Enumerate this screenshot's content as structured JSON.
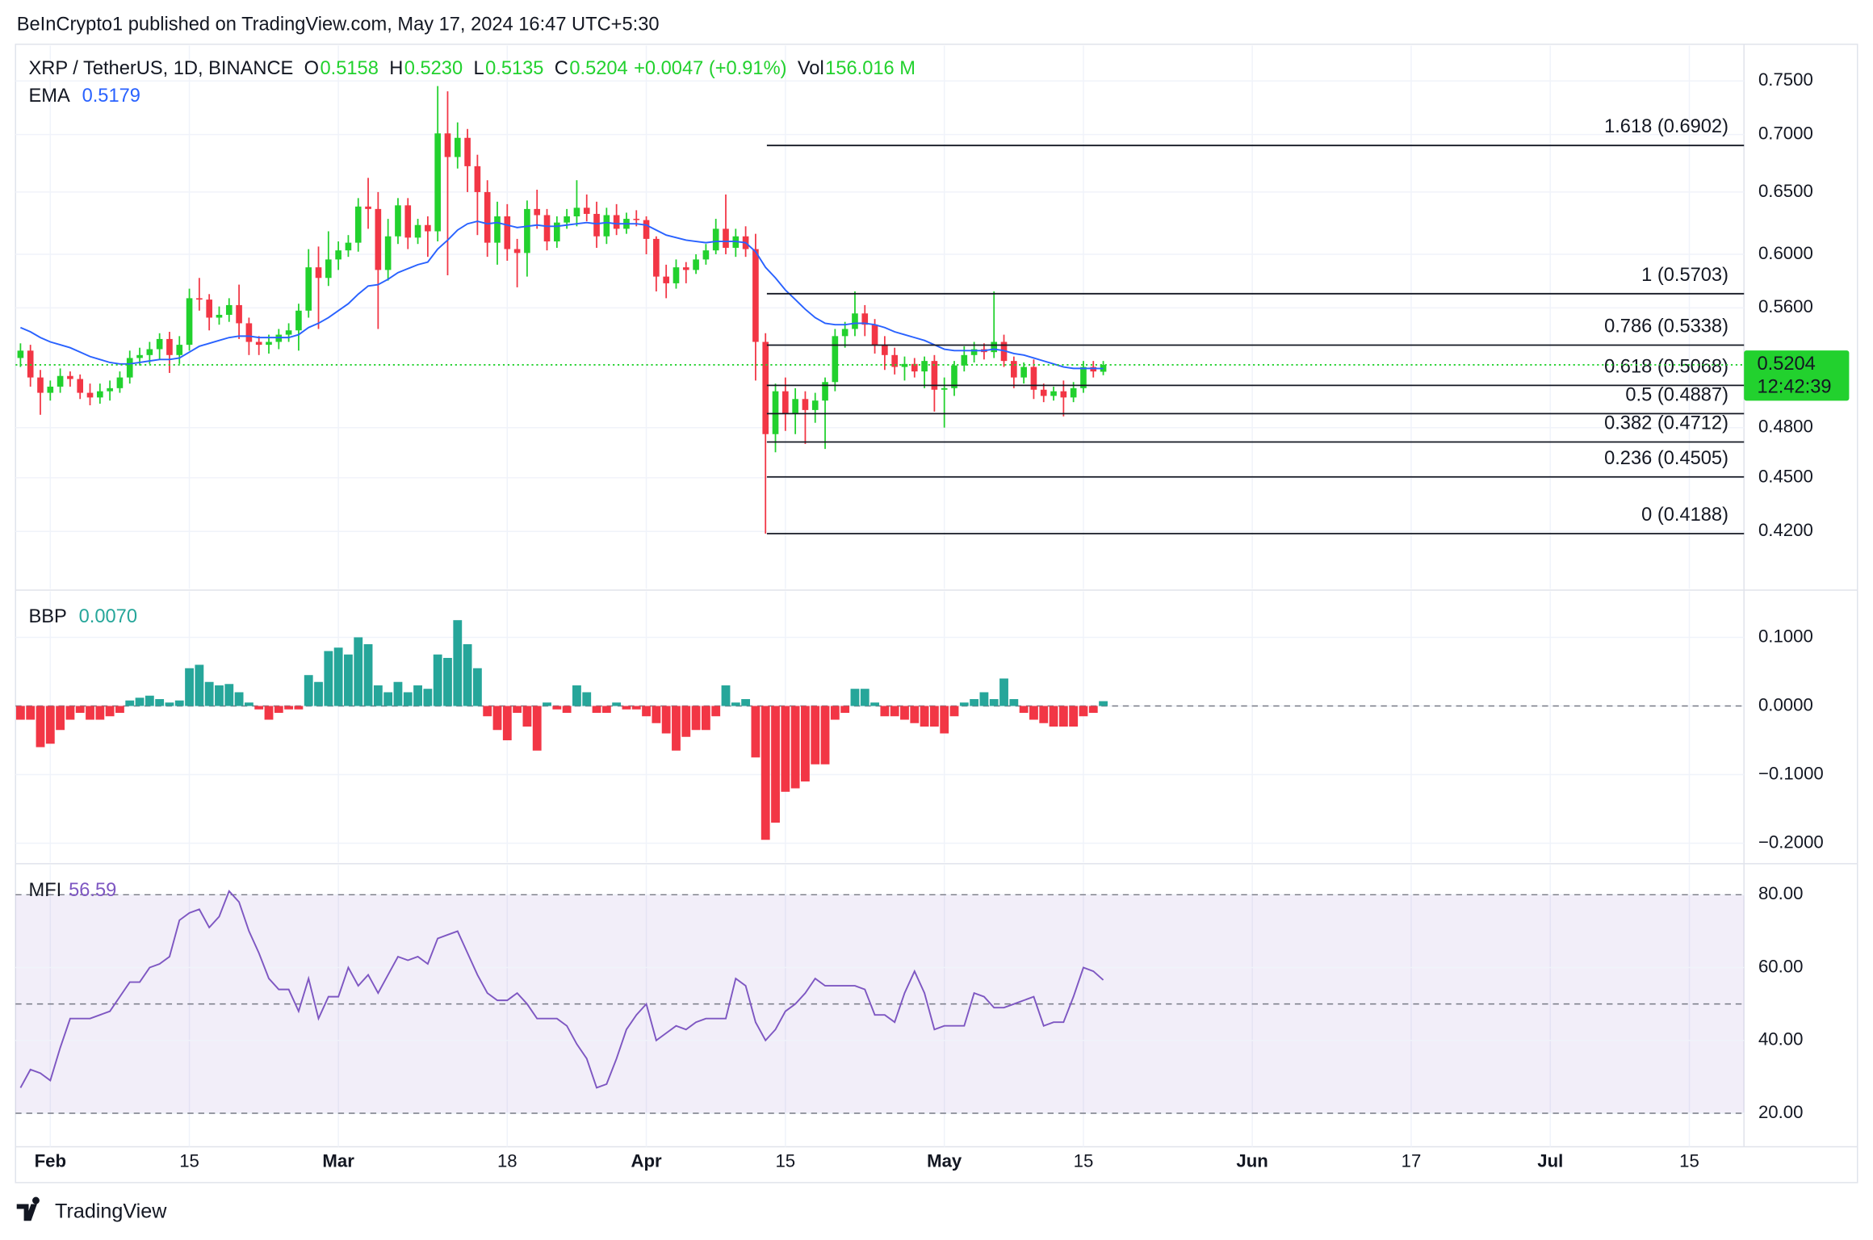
{
  "header": {
    "attribution": "BeInCrypto1 published on TradingView.com, May 17, 2024 16:47 UTC+5:30",
    "logo": "TradingView"
  },
  "chart_data": [
    {
      "type": "candlestick",
      "title": "XRP / TetherUS, 1D, BINANCE",
      "legend": [
        {
          "key": "O",
          "value": "0.5158"
        },
        {
          "key": "H",
          "value": "0.5230"
        },
        {
          "key": "L",
          "value": "0.5135"
        },
        {
          "key": "C",
          "value": "0.5204"
        },
        {
          "key": "",
          "value": "+0.0047 (+0.91%)"
        },
        {
          "key": "Vol",
          "value": "156.016 M"
        }
      ],
      "x": [
        "2024-01-29",
        "2024-01-30",
        "2024-01-31",
        "2024-02-01",
        "2024-02-02",
        "2024-02-03",
        "2024-02-04",
        "2024-02-05",
        "2024-02-06",
        "2024-02-07",
        "2024-02-08",
        "2024-02-09",
        "2024-02-10",
        "2024-02-11",
        "2024-02-12",
        "2024-02-13",
        "2024-02-14",
        "2024-02-15",
        "2024-02-16",
        "2024-02-17",
        "2024-02-18",
        "2024-02-19",
        "2024-02-20",
        "2024-02-21",
        "2024-02-22",
        "2024-02-23",
        "2024-02-24",
        "2024-02-25",
        "2024-02-26",
        "2024-02-27",
        "2024-02-28",
        "2024-02-29",
        "2024-03-01",
        "2024-03-02",
        "2024-03-03",
        "2024-03-04",
        "2024-03-05",
        "2024-03-06",
        "2024-03-07",
        "2024-03-08",
        "2024-03-09",
        "2024-03-10",
        "2024-03-11",
        "2024-03-12",
        "2024-03-13",
        "2024-03-14",
        "2024-03-15",
        "2024-03-16",
        "2024-03-17",
        "2024-03-18",
        "2024-03-19",
        "2024-03-20",
        "2024-03-21",
        "2024-03-22",
        "2024-03-23",
        "2024-03-24",
        "2024-03-25",
        "2024-03-26",
        "2024-03-27",
        "2024-03-28",
        "2024-03-29",
        "2024-03-30",
        "2024-03-31",
        "2024-04-01",
        "2024-04-02",
        "2024-04-03",
        "2024-04-04",
        "2024-04-05",
        "2024-04-06",
        "2024-04-07",
        "2024-04-08",
        "2024-04-09",
        "2024-04-10",
        "2024-04-11",
        "2024-04-12",
        "2024-04-13",
        "2024-04-14",
        "2024-04-15",
        "2024-04-16",
        "2024-04-17",
        "2024-04-18",
        "2024-04-19",
        "2024-04-20",
        "2024-04-21",
        "2024-04-22",
        "2024-04-23",
        "2024-04-24",
        "2024-04-25",
        "2024-04-26",
        "2024-04-27",
        "2024-04-28",
        "2024-04-29",
        "2024-04-30",
        "2024-05-01",
        "2024-05-02",
        "2024-05-03",
        "2024-05-04",
        "2024-05-05",
        "2024-05-06",
        "2024-05-07",
        "2024-05-08",
        "2024-05-09",
        "2024-05-10",
        "2024-05-11",
        "2024-05-12",
        "2024-05-13",
        "2024-05-14",
        "2024-05-15",
        "2024-05-16",
        "2024-05-17"
      ],
      "open": [
        0.525,
        0.53,
        0.512,
        0.502,
        0.506,
        0.513,
        0.511,
        0.502,
        0.499,
        0.503,
        0.505,
        0.512,
        0.525,
        0.527,
        0.531,
        0.538,
        0.527,
        0.534,
        0.567,
        0.566,
        0.553,
        0.555,
        0.562,
        0.549,
        0.536,
        0.534,
        0.536,
        0.541,
        0.544,
        0.558,
        0.59,
        0.582,
        0.596,
        0.603,
        0.609,
        0.638,
        0.636,
        0.588,
        0.614,
        0.639,
        0.613,
        0.623,
        0.618,
        0.701,
        0.68,
        0.697,
        0.672,
        0.65,
        0.609,
        0.63,
        0.604,
        0.601,
        0.636,
        0.631,
        0.61,
        0.625,
        0.63,
        0.637,
        0.632,
        0.614,
        0.631,
        0.62,
        0.628,
        0.627,
        0.612,
        0.583,
        0.578,
        0.59,
        0.588,
        0.596,
        0.603,
        0.62,
        0.605,
        0.614,
        0.604,
        0.536,
        0.476,
        0.503,
        0.489,
        0.498,
        0.491,
        0.497,
        0.509,
        0.54,
        0.545,
        0.556,
        0.548,
        0.534,
        0.527,
        0.519,
        0.521,
        0.516,
        0.523,
        0.504,
        0.505,
        0.52,
        0.527,
        0.531,
        0.529,
        0.536,
        0.523,
        0.512,
        0.519,
        0.504,
        0.5,
        0.503,
        0.499,
        0.505,
        0.519,
        0.5158
      ],
      "high": [
        0.535,
        0.534,
        0.517,
        0.51,
        0.518,
        0.516,
        0.514,
        0.508,
        0.508,
        0.51,
        0.516,
        0.53,
        0.532,
        0.536,
        0.542,
        0.543,
        0.54,
        0.574,
        0.582,
        0.57,
        0.561,
        0.567,
        0.577,
        0.553,
        0.54,
        0.541,
        0.545,
        0.549,
        0.563,
        0.604,
        0.606,
        0.618,
        0.61,
        0.615,
        0.645,
        0.662,
        0.65,
        0.628,
        0.645,
        0.645,
        0.628,
        0.63,
        0.745,
        0.74,
        0.711,
        0.705,
        0.682,
        0.66,
        0.642,
        0.64,
        0.612,
        0.643,
        0.652,
        0.636,
        0.63,
        0.636,
        0.66,
        0.648,
        0.642,
        0.637,
        0.64,
        0.633,
        0.635,
        0.63,
        0.614,
        0.592,
        0.596,
        0.594,
        0.6,
        0.608,
        0.628,
        0.648,
        0.62,
        0.622,
        0.616,
        0.542,
        0.508,
        0.512,
        0.505,
        0.503,
        0.502,
        0.512,
        0.545,
        0.55,
        0.572,
        0.562,
        0.552,
        0.54,
        0.532,
        0.526,
        0.525,
        0.526,
        0.527,
        0.512,
        0.523,
        0.533,
        0.536,
        0.535,
        0.572,
        0.541,
        0.526,
        0.522,
        0.524,
        0.508,
        0.506,
        0.51,
        0.509,
        0.523,
        0.523,
        0.523
      ],
      "low": [
        0.519,
        0.506,
        0.488,
        0.497,
        0.502,
        0.506,
        0.498,
        0.494,
        0.495,
        0.497,
        0.502,
        0.508,
        0.52,
        0.521,
        0.524,
        0.515,
        0.521,
        0.53,
        0.558,
        0.544,
        0.548,
        0.55,
        0.538,
        0.527,
        0.527,
        0.528,
        0.531,
        0.536,
        0.53,
        0.553,
        0.545,
        0.576,
        0.588,
        0.598,
        0.602,
        0.62,
        0.545,
        0.58,
        0.608,
        0.604,
        0.608,
        0.598,
        0.61,
        0.584,
        0.67,
        0.65,
        0.615,
        0.598,
        0.592,
        0.595,
        0.575,
        0.583,
        0.62,
        0.603,
        0.605,
        0.62,
        0.622,
        0.626,
        0.605,
        0.608,
        0.615,
        0.616,
        0.622,
        0.6,
        0.572,
        0.567,
        0.574,
        0.578,
        0.585,
        0.592,
        0.6,
        0.6,
        0.598,
        0.598,
        0.51,
        0.4188,
        0.465,
        0.478,
        0.476,
        0.47,
        0.483,
        0.467,
        0.503,
        0.532,
        0.54,
        0.54,
        0.528,
        0.517,
        0.514,
        0.51,
        0.512,
        0.505,
        0.49,
        0.48,
        0.5,
        0.516,
        0.522,
        0.524,
        0.525,
        0.519,
        0.505,
        0.508,
        0.498,
        0.496,
        0.497,
        0.487,
        0.496,
        0.502,
        0.512,
        0.5135
      ],
      "close": [
        0.53,
        0.512,
        0.502,
        0.506,
        0.513,
        0.511,
        0.502,
        0.499,
        0.503,
        0.505,
        0.512,
        0.525,
        0.527,
        0.531,
        0.538,
        0.527,
        0.534,
        0.567,
        0.566,
        0.553,
        0.555,
        0.562,
        0.549,
        0.536,
        0.534,
        0.536,
        0.541,
        0.544,
        0.558,
        0.59,
        0.582,
        0.596,
        0.603,
        0.609,
        0.638,
        0.636,
        0.588,
        0.614,
        0.639,
        0.613,
        0.623,
        0.618,
        0.701,
        0.68,
        0.697,
        0.672,
        0.65,
        0.609,
        0.63,
        0.604,
        0.601,
        0.636,
        0.631,
        0.61,
        0.625,
        0.63,
        0.637,
        0.632,
        0.614,
        0.631,
        0.62,
        0.628,
        0.627,
        0.612,
        0.583,
        0.578,
        0.59,
        0.588,
        0.596,
        0.603,
        0.62,
        0.605,
        0.614,
        0.604,
        0.536,
        0.476,
        0.503,
        0.489,
        0.498,
        0.491,
        0.497,
        0.509,
        0.54,
        0.545,
        0.556,
        0.548,
        0.534,
        0.527,
        0.519,
        0.521,
        0.516,
        0.523,
        0.504,
        0.505,
        0.52,
        0.527,
        0.531,
        0.529,
        0.536,
        0.523,
        0.512,
        0.519,
        0.504,
        0.5,
        0.503,
        0.499,
        0.505,
        0.519,
        0.516,
        0.5204
      ],
      "up_color": "#22d12e",
      "down_color": "#f23645",
      "ema": {
        "name": "EMA",
        "color": "#2962ff",
        "values": [
          0.546,
          0.543,
          0.539,
          0.536,
          0.534,
          0.532,
          0.529,
          0.526,
          0.524,
          0.522,
          0.521,
          0.521,
          0.522,
          0.523,
          0.524,
          0.524,
          0.525,
          0.529,
          0.533,
          0.535,
          0.537,
          0.539,
          0.54,
          0.54,
          0.539,
          0.539,
          0.539,
          0.539,
          0.541,
          0.546,
          0.549,
          0.553,
          0.558,
          0.563,
          0.57,
          0.576,
          0.577,
          0.581,
          0.586,
          0.589,
          0.592,
          0.594,
          0.604,
          0.611,
          0.619,
          0.624,
          0.626,
          0.624,
          0.625,
          0.623,
          0.621,
          0.622,
          0.623,
          0.622,
          0.622,
          0.623,
          0.624,
          0.625,
          0.624,
          0.625,
          0.624,
          0.624,
          0.624,
          0.623,
          0.619,
          0.615,
          0.613,
          0.611,
          0.61,
          0.609,
          0.61,
          0.61,
          0.61,
          0.609,
          0.602,
          0.59,
          0.582,
          0.573,
          0.566,
          0.559,
          0.553,
          0.549,
          0.548,
          0.548,
          0.549,
          0.549,
          0.548,
          0.546,
          0.543,
          0.541,
          0.539,
          0.537,
          0.534,
          0.531,
          0.53,
          0.53,
          0.53,
          0.53,
          0.531,
          0.53,
          0.528,
          0.527,
          0.525,
          0.523,
          0.521,
          0.519,
          0.518,
          0.518,
          0.518,
          0.5179
        ]
      },
      "fib_levels": [
        {
          "label": "1.618 (0.6902)",
          "value": 0.6902
        },
        {
          "label": "1 (0.5703)",
          "value": 0.5703
        },
        {
          "label": "0.786 (0.5338)",
          "value": 0.5338
        },
        {
          "label": "0.618 (0.5068)",
          "value": 0.5068
        },
        {
          "label": "0.5 (0.4887)",
          "value": 0.4887
        },
        {
          "label": "0.382 (0.4712)",
          "value": 0.4712
        },
        {
          "label": "0.236 (0.4505)",
          "value": 0.4505
        },
        {
          "label": "0 (0.4188)",
          "value": 0.4188
        }
      ],
      "last_price": {
        "value": 0.5204,
        "countdown": "12:42:39",
        "color": "#22d12e"
      },
      "log_scale": true,
      "grid": true,
      "ylim": [
        0.39,
        0.785
      ],
      "yticks": [
        {
          "value": 0.75,
          "label": "0.7500"
        },
        {
          "value": 0.7,
          "label": "0.7000"
        },
        {
          "value": 0.65,
          "label": "0.6500"
        },
        {
          "value": 0.6,
          "label": "0.6000"
        },
        {
          "value": 0.56,
          "label": "0.5600"
        },
        {
          "value": 0.48,
          "label": "0.4800"
        },
        {
          "value": 0.45,
          "label": "0.4500"
        },
        {
          "value": 0.42,
          "label": "0.4200"
        }
      ],
      "xlim": [
        "2024-01-29",
        "2024-07-21"
      ],
      "xticks": [
        {
          "value": "2024-02-01",
          "label": "Feb"
        },
        {
          "value": "2024-02-15",
          "label": "15"
        },
        {
          "value": "2024-03-01",
          "label": "Mar"
        },
        {
          "value": "2024-03-18",
          "label": "18"
        },
        {
          "value": "2024-04-01",
          "label": "Apr"
        },
        {
          "value": "2024-04-15",
          "label": "15"
        },
        {
          "value": "2024-05-01",
          "label": "May"
        },
        {
          "value": "2024-05-15",
          "label": "15"
        },
        {
          "value": "2024-06-01",
          "label": "Jun"
        },
        {
          "value": "2024-06-17",
          "label": "17"
        },
        {
          "value": "2024-07-01",
          "label": "Jul"
        },
        {
          "value": "2024-07-15",
          "label": "15"
        }
      ]
    },
    {
      "type": "histogram",
      "name": "BBP",
      "last_label": "0.0070",
      "pos_color": "#26a69a",
      "neg_color": "#f23645",
      "values": [
        -0.02,
        -0.02,
        -0.06,
        -0.055,
        -0.035,
        -0.02,
        -0.01,
        -0.02,
        -0.02,
        -0.015,
        -0.01,
        0.008,
        0.012,
        0.015,
        0.01,
        0.005,
        0.008,
        0.055,
        0.06,
        0.035,
        0.03,
        0.032,
        0.02,
        0.005,
        -0.005,
        -0.02,
        -0.01,
        -0.005,
        -0.005,
        0.045,
        0.035,
        0.08,
        0.085,
        0.075,
        0.1,
        0.09,
        0.03,
        0.02,
        0.035,
        0.02,
        0.03,
        0.025,
        0.075,
        0.07,
        0.125,
        0.09,
        0.055,
        -0.015,
        -0.035,
        -0.05,
        -0.01,
        -0.03,
        -0.065,
        0.005,
        -0.005,
        -0.01,
        0.03,
        0.02,
        -0.01,
        -0.01,
        0.005,
        -0.005,
        -0.005,
        -0.015,
        -0.025,
        -0.04,
        -0.065,
        -0.045,
        -0.035,
        -0.035,
        -0.015,
        0.03,
        0.005,
        0.01,
        -0.075,
        -0.195,
        -0.17,
        -0.125,
        -0.12,
        -0.11,
        -0.085,
        -0.085,
        -0.02,
        -0.01,
        0.025,
        0.025,
        0.005,
        -0.015,
        -0.015,
        -0.02,
        -0.025,
        -0.03,
        -0.03,
        -0.04,
        -0.015,
        0.005,
        0.01,
        0.02,
        0.01,
        0.04,
        0.01,
        -0.01,
        -0.02,
        -0.025,
        -0.03,
        -0.03,
        -0.03,
        -0.015,
        -0.01,
        0.007
      ],
      "ylim": [
        -0.228,
        0.167
      ],
      "yticks": [
        {
          "value": 0.1,
          "label": "0.1000"
        },
        {
          "value": 0,
          "label": "0.0000"
        },
        {
          "value": -0.1,
          "label": "−0.1000"
        },
        {
          "value": -0.2,
          "label": "−0.2000"
        }
      ]
    },
    {
      "type": "line",
      "name": "MFI",
      "color": "#7e57c2",
      "values": [
        27,
        32,
        31,
        29,
        38,
        46,
        46,
        46,
        47,
        48,
        52,
        56,
        56,
        60,
        61,
        63,
        73,
        75,
        76,
        71,
        74,
        81,
        78,
        70,
        64,
        57,
        54,
        54,
        48,
        57,
        46,
        52,
        52,
        60,
        55,
        58,
        53,
        58,
        63,
        62,
        63,
        61,
        68,
        69,
        70,
        64,
        58,
        53,
        51,
        51,
        53,
        50,
        46,
        46,
        46,
        44,
        39,
        35,
        27,
        28,
        35,
        43,
        47,
        50,
        40,
        42,
        44,
        43,
        45,
        46,
        46,
        46,
        57,
        55,
        45,
        40,
        43,
        48,
        50,
        53,
        57,
        55,
        55,
        55,
        55,
        54,
        47,
        47,
        45,
        53,
        59,
        53,
        43,
        44,
        44,
        44,
        53,
        52,
        49,
        49,
        50,
        51,
        52,
        44,
        45,
        45,
        52,
        60,
        59,
        56.59
      ],
      "band": [
        20,
        80
      ],
      "midline": 50,
      "ylim": [
        10.8,
        88.2
      ],
      "yticks": [
        {
          "value": 80,
          "label": "80.00"
        },
        {
          "value": 60,
          "label": "60.00"
        },
        {
          "value": 40,
          "label": "40.00"
        },
        {
          "value": 20,
          "label": "20.00"
        }
      ]
    }
  ]
}
